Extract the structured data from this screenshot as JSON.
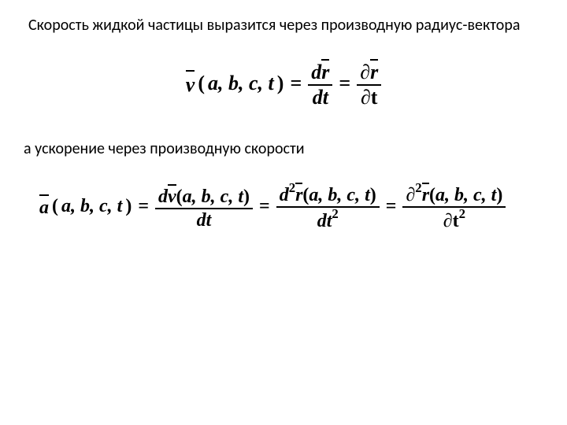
{
  "text": {
    "para1": "Скорость жидкой частицы выразится через производную радиус-вектора",
    "para2": "а ускорение через производную скорости"
  },
  "eq1": {
    "lhs_var": "v",
    "lhs_args": "a, b, c, t",
    "rhs1_num_d": "d",
    "rhs1_num_var": "r",
    "rhs1_den": "dt",
    "rhs2_num_d": "∂",
    "rhs2_num_var": "r",
    "rhs2_den": "∂t"
  },
  "eq2": {
    "lhs_var": "a",
    "lhs_args": "a, b, c, t",
    "t1_num_d": "d",
    "t1_num_var": "v",
    "t1_num_args": "a, b, c, t",
    "t1_den": "dt",
    "t2_num_d": "d",
    "t2_num_sup": "2",
    "t2_num_var": "r",
    "t2_num_args": "a, b, c, t",
    "t2_den_d": "dt",
    "t2_den_sup": "2",
    "t3_num_d": "∂",
    "t3_num_sup": "2",
    "t3_num_var": "r",
    "t3_num_args": "a, b, c, t",
    "t3_den_d": "∂t",
    "t3_den_sup": "2"
  },
  "style": {
    "text_color": "#000000",
    "bg_color": "#ffffff",
    "body_fontsize_pt": 15,
    "math_fontsize_pt": 20,
    "math2_fontsize_pt": 18
  }
}
